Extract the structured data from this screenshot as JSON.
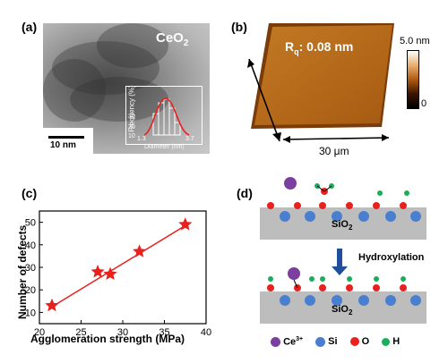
{
  "panels": {
    "a": {
      "letter": "(a)",
      "material_label": "CeO",
      "material_sub": "2",
      "scale_bar": "10 nm",
      "inset": {
        "ylabel": "Frequency (%)",
        "xlabel": "Diameter (nm)",
        "yticks": [
          "0",
          "10",
          "20",
          "30"
        ],
        "xticks": [
          "1.3",
          "3.7"
        ]
      }
    },
    "b": {
      "letter": "(b)",
      "roughness_label": "R",
      "roughness_sub": "q",
      "roughness_value": ": 0.08 nm",
      "colorbar_max": "5.0 nm",
      "colorbar_min": "0",
      "dimension": "30 μm"
    },
    "c": {
      "letter": "(c)"
    },
    "d": {
      "letter": "(d)",
      "substrate_label": "SiO",
      "substrate_sub": "2",
      "arrow_label": "Hydroxylation",
      "legend": [
        {
          "label": "Ce",
          "sup": "3+",
          "color": "#7b3fa0"
        },
        {
          "label": "Si",
          "sup": "",
          "color": "#4a7fd0"
        },
        {
          "label": "O",
          "sup": "",
          "color": "#e8201e"
        },
        {
          "label": "H",
          "sup": "",
          "color": "#1bae5a"
        }
      ]
    }
  },
  "chart_data": {
    "type": "scatter",
    "xlabel": "Agglomeration strength (MPa)",
    "ylabel": "Number of defects",
    "xlim": [
      20,
      40
    ],
    "ylim": [
      5,
      55
    ],
    "xticks": [
      20,
      25,
      30,
      35,
      40
    ],
    "yticks": [
      10,
      20,
      30,
      40,
      50
    ],
    "series": [
      {
        "points": [
          {
            "x": 21.5,
            "y": 13
          },
          {
            "x": 27.0,
            "y": 28
          },
          {
            "x": 28.5,
            "y": 27
          },
          {
            "x": 32.0,
            "y": 37
          },
          {
            "x": 37.5,
            "y": 49
          }
        ]
      }
    ],
    "fit_line": {
      "x": [
        21.5,
        37.5
      ],
      "y": [
        12.5,
        48.5
      ]
    },
    "color": "#e8201e"
  }
}
